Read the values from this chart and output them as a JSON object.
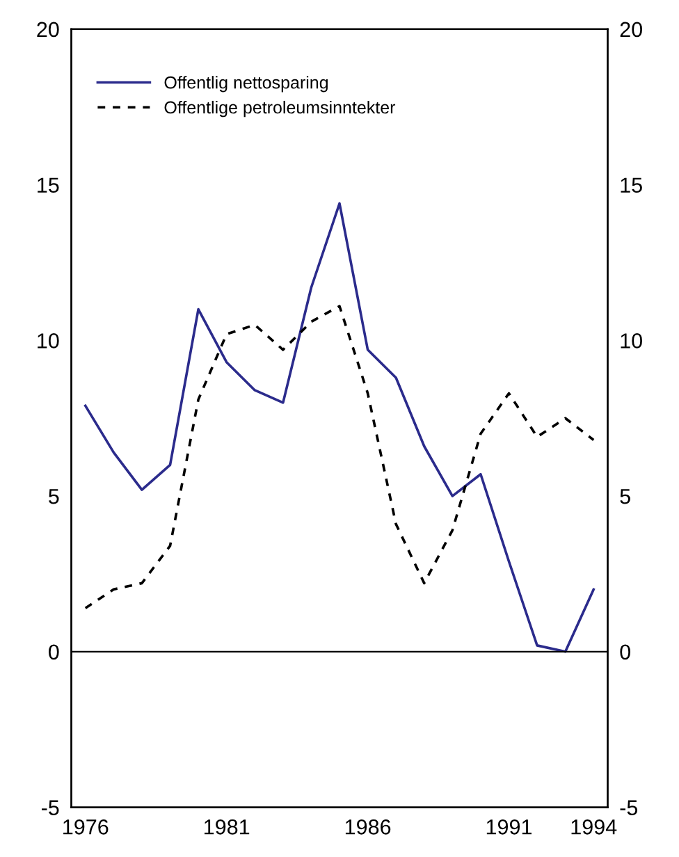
{
  "chart_data": {
    "type": "line",
    "x": [
      1976,
      1977,
      1978,
      1979,
      1980,
      1981,
      1982,
      1983,
      1984,
      1985,
      1986,
      1987,
      1988,
      1989,
      1990,
      1991,
      1992,
      1993,
      1994
    ],
    "series": [
      {
        "name": "Offentlig nettosparing",
        "color": "#2b2b8c",
        "line_style": "solid",
        "values": [
          7.9,
          6.4,
          5.2,
          6.0,
          11.0,
          9.3,
          8.4,
          8.0,
          11.7,
          14.4,
          9.7,
          8.8,
          6.6,
          5.0,
          5.7,
          2.9,
          0.2,
          0.0,
          2.0
        ]
      },
      {
        "name": "Offentlige petroleumsinntekter",
        "color": "#000000",
        "line_style": "dashed",
        "values": [
          1.4,
          2.0,
          2.2,
          3.4,
          8.1,
          10.2,
          10.5,
          9.7,
          10.6,
          11.1,
          8.3,
          4.1,
          2.2,
          3.9,
          7.0,
          8.3,
          6.9,
          7.5,
          6.8
        ]
      }
    ],
    "xlim": [
      1975.5,
      1994.5
    ],
    "xticks": [
      1976,
      1981,
      1986,
      1991,
      1994
    ],
    "ylim": [
      -5,
      20
    ],
    "yticks": [
      -5,
      0,
      5,
      10,
      15,
      20
    ],
    "y2lim": [
      -5,
      20
    ],
    "y2ticks": [
      -5,
      0,
      5,
      10,
      15,
      20
    ],
    "ref_lines": [
      {
        "axis": "y",
        "value": 0,
        "color": "#000000"
      }
    ],
    "legend": "top left",
    "grid": false,
    "marker": "none"
  }
}
